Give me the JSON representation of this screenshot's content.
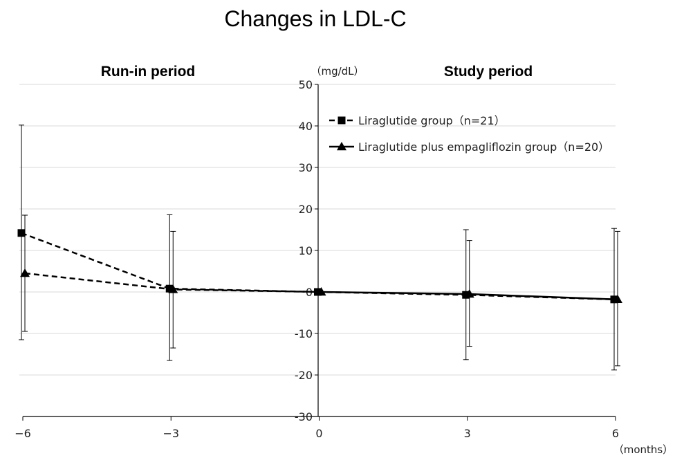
{
  "chart_data": {
    "type": "line",
    "title": "Changes in LDL-C",
    "y_unit": "（mg/dL）",
    "x_unit": "（months）",
    "period_labels": {
      "left": "Run-in period",
      "right": "Study period"
    },
    "x": [
      -6,
      -3,
      0,
      3,
      6
    ],
    "x_tick_labels": [
      "−6",
      "−3",
      "0",
      "3",
      "6"
    ],
    "ylim": [
      -30,
      50
    ],
    "y_ticks": [
      50,
      40,
      30,
      20,
      10,
      0,
      -10,
      -20,
      -30
    ],
    "grid": true,
    "legend_position": "top-right",
    "series": [
      {
        "name": "Liraglutide group（n=21）",
        "marker": "square",
        "run_in_line": "dashed",
        "study_line": "dashed",
        "values": [
          14.2,
          0.8,
          0,
          -0.7,
          -1.8
        ],
        "error_high": [
          40.2,
          18.6,
          0,
          15.0,
          15.3
        ],
        "error_low": [
          -11.5,
          -16.5,
          0,
          -16.3,
          -18.8
        ]
      },
      {
        "name": "Liraglutide plus empagliflozin group（n=20）",
        "marker": "triangle",
        "run_in_line": "dashed",
        "study_line": "solid",
        "values": [
          4.5,
          0.6,
          0,
          -0.5,
          -1.8
        ],
        "error_high": [
          18.5,
          14.6,
          0,
          12.4,
          14.6
        ],
        "error_low": [
          -9.5,
          -13.5,
          0,
          -13.1,
          -17.8
        ]
      }
    ]
  }
}
